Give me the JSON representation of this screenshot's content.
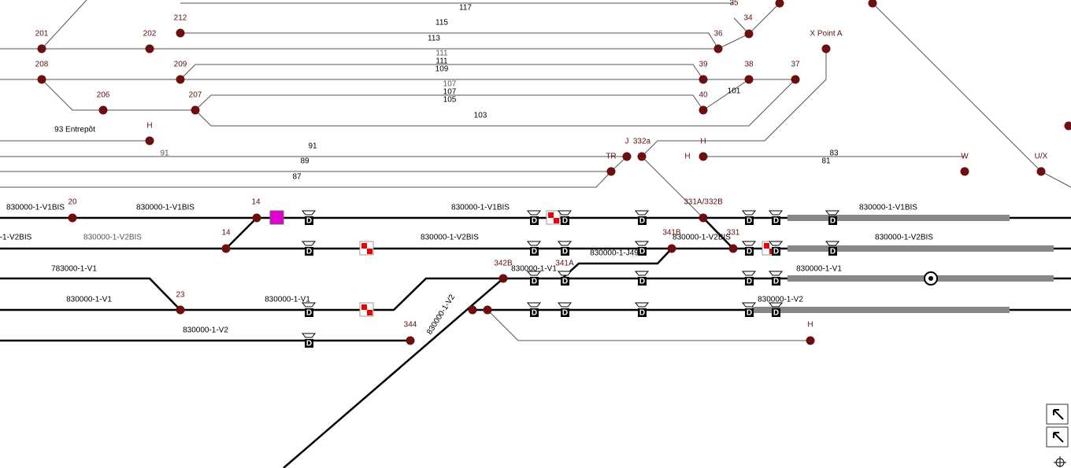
{
  "node_labels": [
    "35",
    "34",
    "212",
    "201",
    "202",
    "36",
    "X Point A",
    "208",
    "209",
    "39",
    "38",
    "37",
    "206",
    "207",
    "40",
    "101",
    "H",
    "J",
    "332a",
    "H",
    "TR",
    "H",
    "W",
    "U/X",
    "20",
    "14",
    "331A/332B",
    "14",
    "341B",
    "331",
    "342B",
    "341A",
    "23",
    "344",
    "H"
  ],
  "track_labels": [
    "117",
    "115",
    "113",
    "111",
    "111",
    "109",
    "107",
    "107",
    "105",
    "103",
    "93 Entrepôt",
    "91",
    "91",
    "89",
    "87",
    "83",
    "81",
    "830000-1-V1BIS",
    "830000-1-V1BIS",
    "830000-1-V1BIS",
    "830000-1-V1BIS",
    "-1-V2BIS",
    "830000-1-V2BIS",
    "830000-1-V2BIS",
    "830000-1-V2BIS",
    "830000-1-V2BIS",
    "830000-1-J49",
    "783000-1-V1",
    "830000-1-V1",
    "830000-1-V1",
    "830000-1-V1",
    "830000-1-V1",
    "830000-1-V2",
    "830000-1-V2",
    "830000-1-V2"
  ],
  "signal_label": "D"
}
